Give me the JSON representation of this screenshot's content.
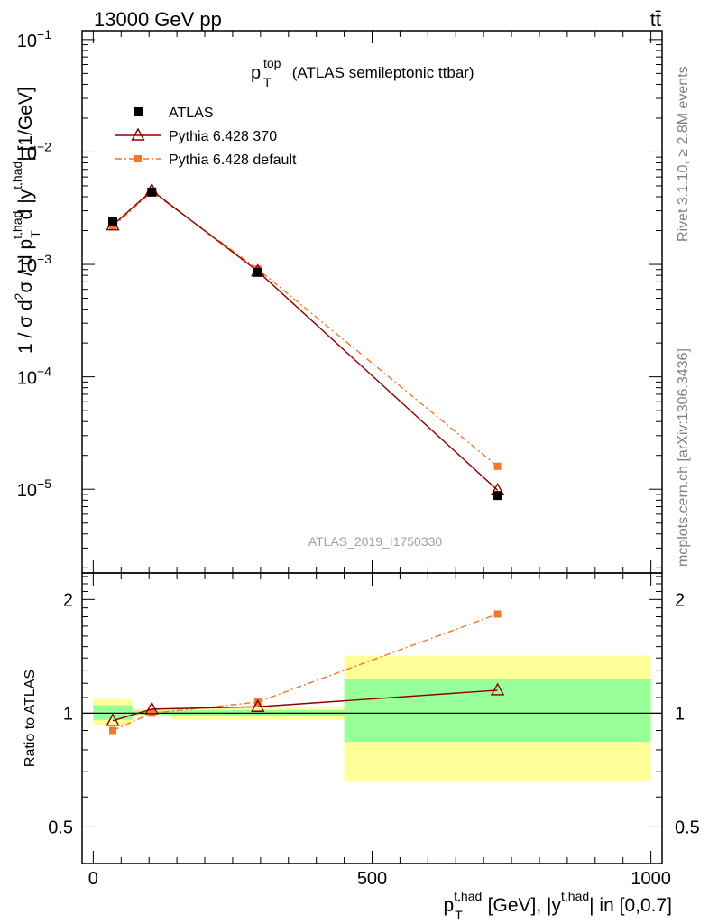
{
  "header": {
    "energy_label": "13000 GeV pp",
    "process_label": "tt̄"
  },
  "side_labels": {
    "rivet": "Rivet 3.1.10, ≥ 2.8M events",
    "mcplots": "mcplots.cern.ch [arXiv:1306.3436]"
  },
  "chart_data": [
    {
      "panel": "main",
      "type": "line",
      "title_main": "p",
      "title_sub": "T",
      "title_sup": "top",
      "title_rest": " (ATLAS semileptonic ttbar)",
      "watermark": "ATLAS_2019_I1750330",
      "ylabel": "1 / σ d²σ / d p_T^{t,had} d |y^{t,had}| [1/GeV]",
      "yscale": "log",
      "ylim": [
        1.8e-06,
        0.12
      ],
      "xlim": [
        -20,
        1020
      ],
      "yticks": [
        {
          "value": 1e-05,
          "base": "10",
          "exp": "−5"
        },
        {
          "value": 0.0001,
          "base": "10",
          "exp": "−4"
        },
        {
          "value": 0.001,
          "base": "10",
          "exp": "−3"
        },
        {
          "value": 0.01,
          "base": "10",
          "exp": "−2"
        },
        {
          "value": 0.1,
          "base": "10",
          "exp": "−1"
        }
      ],
      "legend_position": "top-left",
      "series": [
        {
          "name": "ATLAS",
          "color": "#000000",
          "marker": "square",
          "x": [
            35,
            105,
            295,
            725
          ],
          "values": [
            0.0024,
            0.0044,
            0.00085,
            8.8e-06
          ]
        },
        {
          "name": "Pythia 6.428 370",
          "color": "#8b0000",
          "marker": "triangle-open",
          "x": [
            35,
            105,
            295,
            725
          ],
          "values": [
            0.00223,
            0.00455,
            0.00087,
            9.8e-06
          ]
        },
        {
          "name": "Pythia 6.428 default",
          "color": "#f0782c",
          "marker": "square-small",
          "x": [
            35,
            105,
            295,
            725
          ],
          "values": [
            0.00216,
            0.00443,
            0.00091,
            1.6e-05
          ]
        }
      ]
    },
    {
      "panel": "ratio",
      "type": "line",
      "ylabel": "Ratio to ATLAS",
      "yscale": "log",
      "ylim": [
        0.4,
        2.35
      ],
      "xlim": [
        -20,
        1020
      ],
      "xlabel": "p_T^{t,had} [GeV], |y^{t,had}| in [0,0.7]",
      "yticks": [
        {
          "value": 0.5,
          "label": "0.5"
        },
        {
          "value": 1,
          "label": "1"
        },
        {
          "value": 2,
          "label": "2"
        }
      ],
      "xticks": [
        {
          "value": 0,
          "label": "0"
        },
        {
          "value": 500,
          "label": "500"
        },
        {
          "value": 1000,
          "label": "1000"
        }
      ],
      "bins": [
        {
          "lo": 0,
          "hi": 70,
          "band_yellow": [
            0.93,
            1.09
          ],
          "band_green": [
            0.96,
            1.05
          ]
        },
        {
          "lo": 70,
          "hi": 140,
          "band_yellow": [
            0.98,
            1.025
          ],
          "band_green": [
            0.99,
            1.015
          ]
        },
        {
          "lo": 140,
          "hi": 450,
          "band_yellow": [
            0.96,
            1.04
          ],
          "band_green": [
            0.98,
            1.02
          ]
        },
        {
          "lo": 450,
          "hi": 1000,
          "band_yellow": [
            0.66,
            1.42
          ],
          "band_green": [
            0.84,
            1.23
          ]
        }
      ],
      "series": [
        {
          "name": "Pythia 6.428 370",
          "color": "#8b0000",
          "marker": "triangle-open",
          "x": [
            35,
            105,
            295,
            725
          ],
          "values": [
            0.955,
            1.025,
            1.04,
            1.15
          ]
        },
        {
          "name": "Pythia 6.428 default",
          "color": "#f0782c",
          "marker": "square-small",
          "x": [
            35,
            105,
            295,
            725
          ],
          "values": [
            0.9,
            1.0,
            1.07,
            1.83
          ]
        }
      ]
    }
  ]
}
